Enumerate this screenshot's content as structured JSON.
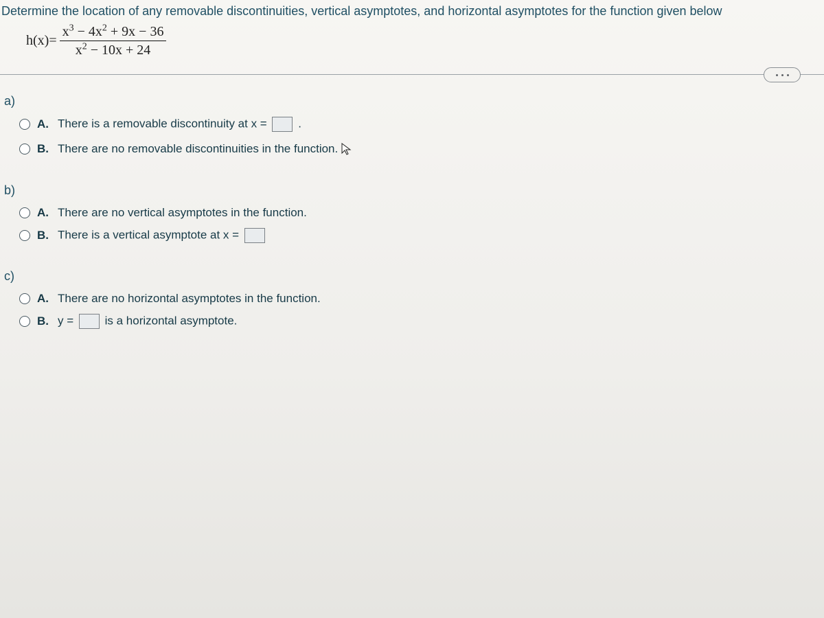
{
  "prompt": "Determine the location of any removable discontinuities, vertical asymptotes, and horizontal asymptotes for the function given below",
  "function": {
    "lhs": "h(x)=",
    "numerator_html": "x<sup>3</sup> − 4x<sup>2</sup> + 9x − 36",
    "denominator_html": "x<sup>2</sup> − 10x + 24"
  },
  "colors": {
    "text_heading": "#1f4f63",
    "text_body": "#173a47",
    "divider": "#9aa0a6",
    "background": "#f5f4f1"
  },
  "font_sizes": {
    "prompt": 18,
    "option": 17,
    "function": 20
  },
  "parts": {
    "a": {
      "label": "a)",
      "A": {
        "pre": "There is a removable discontinuity at x =",
        "post": "."
      },
      "B": {
        "text": "There are no removable discontinuities in the function."
      }
    },
    "b": {
      "label": "b)",
      "A": {
        "text": "There are no vertical asymptotes in the function."
      },
      "B": {
        "pre": "There is a vertical asymptote at x =",
        "post": ""
      }
    },
    "c": {
      "label": "c)",
      "A": {
        "text": "There are no horizontal asymptotes in the function."
      },
      "B": {
        "pre": "y =",
        "post": "is a horizontal asymptote."
      }
    }
  }
}
